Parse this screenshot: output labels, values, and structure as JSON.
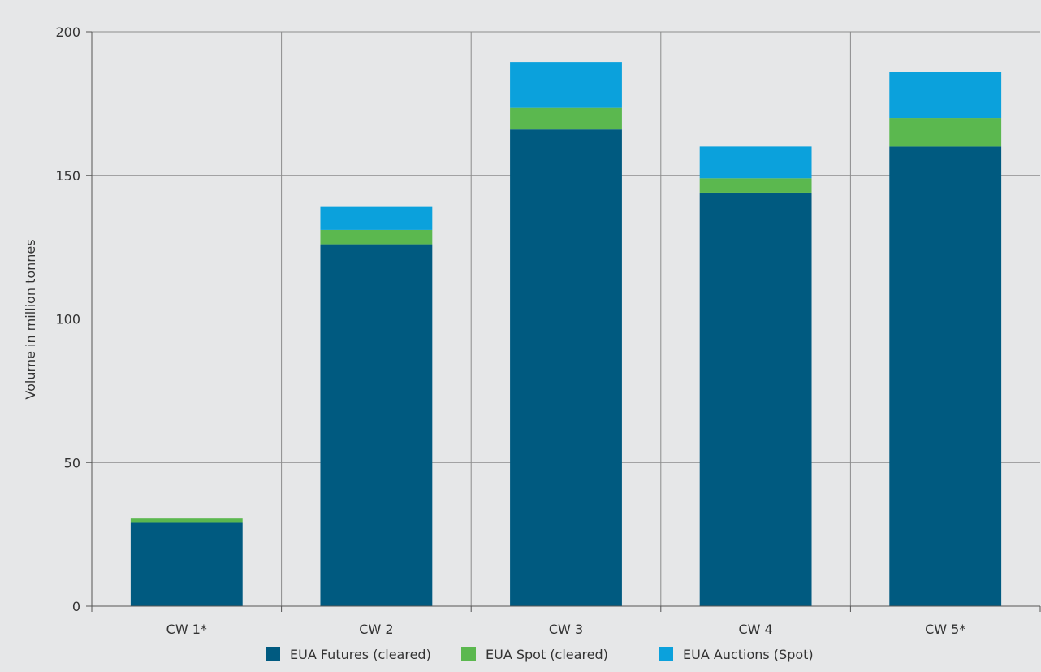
{
  "chart_data": {
    "type": "bar",
    "stacked": true,
    "categories": [
      "CW 1*",
      "CW 2",
      "CW 3",
      "CW 4",
      "CW 5*"
    ],
    "series": [
      {
        "name": "EUA Futures (cleared)",
        "color": "#005A80",
        "values": [
          29,
          126,
          166,
          144,
          160
        ]
      },
      {
        "name": "EUA Spot (cleared)",
        "color": "#5BB84F",
        "values": [
          1.5,
          5,
          7.5,
          5,
          10
        ]
      },
      {
        "name": "EUA Auctions (Spot)",
        "color": "#0BA1DC",
        "values": [
          0,
          8,
          16,
          11,
          16
        ]
      }
    ],
    "title": "",
    "xlabel": "",
    "ylabel": "Volume in million tonnes",
    "ylim": [
      0,
      200
    ],
    "yticks": [
      0,
      50,
      100,
      150,
      200
    ],
    "grid": true,
    "legend": "bottom",
    "background_color": "#E6E7E8",
    "grid_color": "#8C8C8C"
  }
}
